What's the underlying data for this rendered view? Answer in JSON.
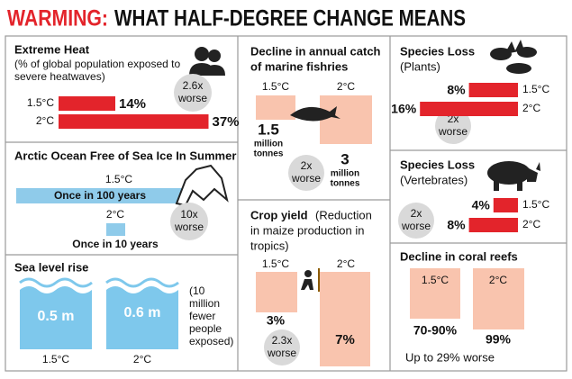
{
  "title": {
    "highlight": "WARMING:",
    "rest": "WHAT HALF-DEGREE CHANGE MEANS"
  },
  "extreme_heat": {
    "title": "Extreme Heat",
    "subtitle": [
      "(% of global population exposed to",
      "severe heatwaves)"
    ],
    "labels": [
      "1.5°C",
      "2°C"
    ],
    "values": [
      14,
      37
    ],
    "value_labels": [
      "14%",
      "37%"
    ],
    "comparison": [
      "2.6x",
      "worse"
    ],
    "color": "#e3242b"
  },
  "arctic": {
    "title": "Arctic Ocean Free of Sea Ice In Summer",
    "labels": [
      "1.5°C",
      "2°C"
    ],
    "notes": [
      "Once in 100 years",
      "Once in 10 years"
    ],
    "comparison": [
      "10x",
      "worse"
    ]
  },
  "sea_level": {
    "title": "Sea level rise",
    "labels": [
      "1.5°C",
      "2°C"
    ],
    "levels": [
      "0.5 m",
      "0.6 m"
    ],
    "note": [
      "(10",
      "million",
      "fewer",
      "people",
      "exposed)"
    ]
  },
  "fisheries": {
    "title": [
      "Decline in annual catch",
      "of marine fishries"
    ],
    "labels": [
      "1.5°C",
      "2°C"
    ],
    "values": [
      1.5,
      3
    ],
    "unit": [
      "million",
      "tonnes"
    ],
    "comparison": [
      "2x",
      "worse"
    ],
    "color": "#f9c4ae"
  },
  "crop_yield": {
    "title": "Crop yield",
    "subtitle": [
      "(Reduction",
      "in maize production in",
      "tropics)"
    ],
    "labels": [
      "1.5°C",
      "2°C"
    ],
    "values": [
      3,
      7
    ],
    "value_labels": [
      "3%",
      "7%"
    ],
    "comparison": [
      "2.3x",
      "worse"
    ],
    "color": "#f9c4ae"
  },
  "plants": {
    "title": "Species Loss",
    "subtitle": "(Plants)",
    "labels": [
      "1.5°C",
      "2°C"
    ],
    "values": [
      8,
      16
    ],
    "value_labels": [
      "8%",
      "16%"
    ],
    "comparison": [
      "2x",
      "worse"
    ],
    "color": "#e3242b"
  },
  "vertebrates": {
    "title": "Species Loss",
    "subtitle": "(Vertebrates)",
    "labels": [
      "1.5°C",
      "2°C"
    ],
    "values": [
      4,
      8
    ],
    "value_labels": [
      "4%",
      "8%"
    ],
    "comparison": [
      "2x",
      "worse"
    ],
    "color": "#e3242b"
  },
  "coral": {
    "title": "Decline in coral reefs",
    "labels": [
      "1.5°C",
      "2°C"
    ],
    "value_labels": [
      "70-90%",
      "99%"
    ],
    "note": "Up to 29% worse"
  }
}
